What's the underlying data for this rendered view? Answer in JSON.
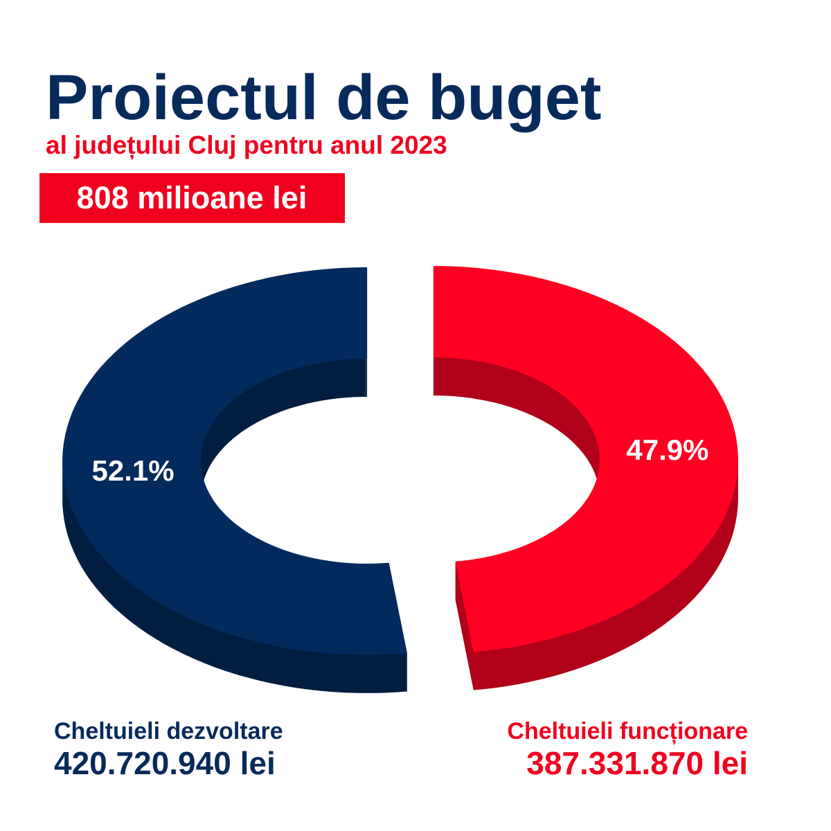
{
  "chart_data": {
    "type": "pie",
    "title": "Proiectul de buget",
    "subtitle": "al județului Cluj pentru anul 2023",
    "total_label": "808 milioane lei",
    "categories": [
      "Cheltuieli funcționare",
      "Cheltuieli dezvoltare"
    ],
    "values": [
      47.9,
      52.1
    ],
    "value_labels": [
      "47.9%",
      "52.1%"
    ],
    "amounts": [
      "387.331.870 lei",
      "420.720.940 lei"
    ],
    "colors": [
      "#ff0022",
      "#022a5c"
    ],
    "side_colors": [
      "#b0001a",
      "#011d40"
    ]
  }
}
